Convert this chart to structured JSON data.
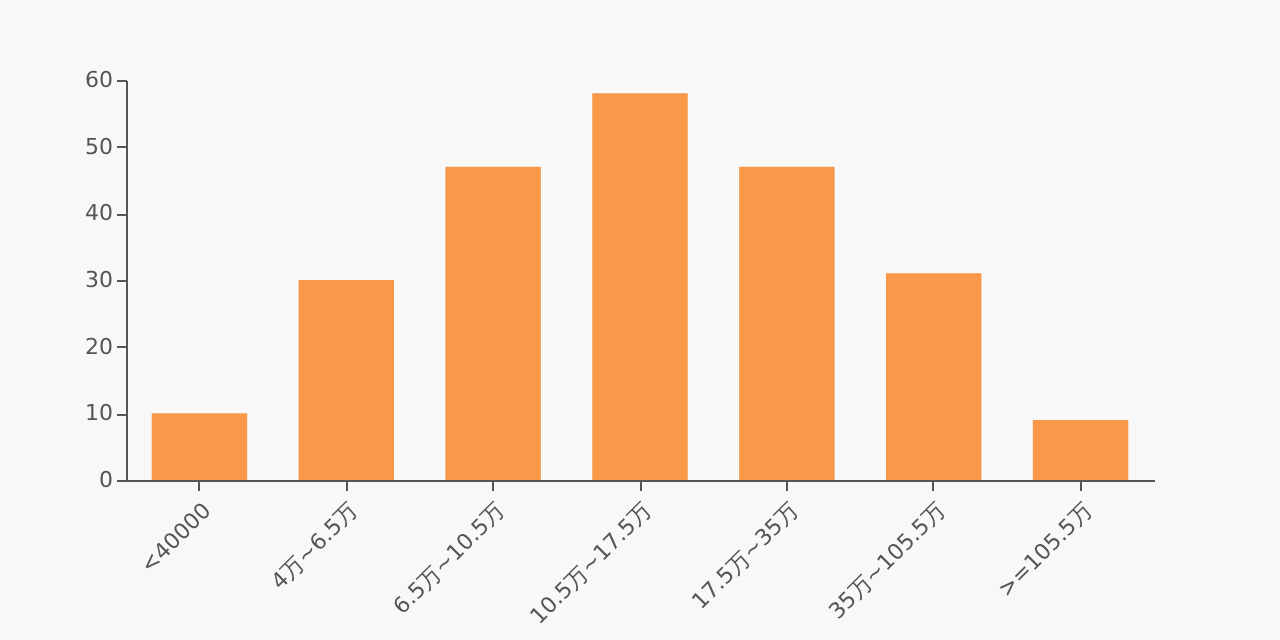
{
  "chart_data": {
    "type": "bar",
    "categories": [
      "<40000",
      "4万~6.5万",
      "6.5万~10.5万",
      "10.5万~17.5万",
      "17.5万~35万",
      "35万~105.5万",
      ">=105.5万"
    ],
    "values": [
      10,
      30,
      47,
      58,
      47,
      31,
      9
    ],
    "color": "#f89848",
    "ylim": [
      0,
      60
    ],
    "yticks": [
      0,
      10,
      20,
      30,
      40,
      50,
      60
    ],
    "grid": false
  }
}
